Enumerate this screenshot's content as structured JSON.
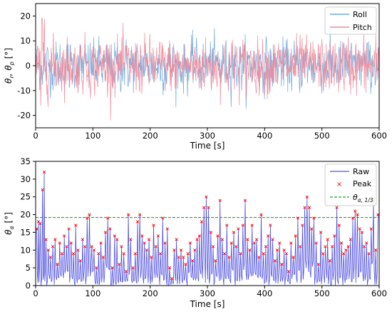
{
  "chart_data": [
    {
      "type": "line",
      "xlabel": "Time [s]",
      "ylabel": "θr, θp [°]",
      "ylabel_parts": {
        "main": "θ",
        "sub1": "r",
        "sep": ", θ",
        "sub2": "p",
        "unit": " [°]"
      },
      "xlim": [
        0,
        600
      ],
      "ylim": [
        -25,
        25
      ],
      "xticks": [
        0,
        100,
        200,
        300,
        400,
        500,
        600
      ],
      "yticks": [
        -20,
        -10,
        0,
        10,
        20
      ],
      "grid": false,
      "legend": "top-right",
      "series": [
        {
          "name": "Roll",
          "color": "#6fa8dc",
          "amplitude_sd": 5.5,
          "peak_max": 19,
          "peak_min": -19
        },
        {
          "name": "Pitch",
          "color": "#f08a9a",
          "amplitude_sd": 6.0,
          "peak_max": 19,
          "peak_min": -23
        }
      ]
    },
    {
      "type": "line",
      "xlabel": "Time [s]",
      "ylabel": "θα [°]",
      "ylabel_parts": {
        "main": "θ",
        "sub": "α",
        "unit": " [°]"
      },
      "xlim": [
        0,
        600
      ],
      "ylim": [
        0,
        35
      ],
      "xticks": [
        0,
        100,
        200,
        300,
        400,
        500,
        600
      ],
      "yticks": [
        0,
        5,
        10,
        15,
        20,
        25,
        30,
        35
      ],
      "grid": false,
      "legend": "top-right",
      "series": [
        {
          "name": "Raw",
          "color": "#5050e0"
        },
        {
          "name": "Peak",
          "color": "#ff0000",
          "marker": "x"
        }
      ],
      "threshold": {
        "name": "θα,1/3",
        "name_parts": {
          "main": "θ",
          "sub": "α, 1/3"
        },
        "value": 19.2,
        "color": "#2ca02c",
        "style": "dashed"
      },
      "peaks": [
        [
          2,
          16
        ],
        [
          5,
          18
        ],
        [
          8,
          17.5
        ],
        [
          12,
          27
        ],
        [
          15,
          32
        ],
        [
          18,
          13
        ],
        [
          22,
          10
        ],
        [
          26,
          8
        ],
        [
          30,
          11
        ],
        [
          34,
          13
        ],
        [
          38,
          6
        ],
        [
          42,
          12
        ],
        [
          46,
          9
        ],
        [
          50,
          14
        ],
        [
          54,
          11
        ],
        [
          58,
          16
        ],
        [
          62,
          12
        ],
        [
          66,
          9
        ],
        [
          70,
          17
        ],
        [
          74,
          10
        ],
        [
          78,
          7
        ],
        [
          82,
          13
        ],
        [
          86,
          11
        ],
        [
          90,
          19
        ],
        [
          94,
          20
        ],
        [
          98,
          11
        ],
        [
          102,
          10
        ],
        [
          106,
          5
        ],
        [
          110,
          9
        ],
        [
          114,
          12
        ],
        [
          118,
          8
        ],
        [
          122,
          15
        ],
        [
          126,
          19
        ],
        [
          130,
          16
        ],
        [
          134,
          5
        ],
        [
          138,
          14
        ],
        [
          142,
          13
        ],
        [
          146,
          6
        ],
        [
          150,
          11
        ],
        [
          154,
          9
        ],
        [
          158,
          4
        ],
        [
          162,
          20
        ],
        [
          166,
          13
        ],
        [
          170,
          5
        ],
        [
          174,
          9
        ],
        [
          178,
          18
        ],
        [
          182,
          20
        ],
        [
          186,
          14
        ],
        [
          190,
          12
        ],
        [
          194,
          10
        ],
        [
          198,
          13
        ],
        [
          202,
          8
        ],
        [
          206,
          17
        ],
        [
          210,
          11
        ],
        [
          214,
          14
        ],
        [
          218,
          9
        ],
        [
          222,
          19
        ],
        [
          226,
          12
        ],
        [
          230,
          16
        ],
        [
          234,
          5
        ],
        [
          238,
          2
        ],
        [
          242,
          10
        ],
        [
          246,
          13
        ],
        [
          250,
          8
        ],
        [
          254,
          10
        ],
        [
          258,
          8
        ],
        [
          262,
          6
        ],
        [
          266,
          9
        ],
        [
          270,
          12
        ],
        [
          274,
          7
        ],
        [
          278,
          10
        ],
        [
          282,
          13
        ],
        [
          286,
          14
        ],
        [
          290,
          18
        ],
        [
          294,
          22
        ],
        [
          298,
          25
        ],
        [
          302,
          22
        ],
        [
          306,
          15
        ],
        [
          310,
          11
        ],
        [
          314,
          7
        ],
        [
          318,
          14
        ],
        [
          322,
          24
        ],
        [
          326,
          13
        ],
        [
          330,
          9
        ],
        [
          334,
          17
        ],
        [
          338,
          8
        ],
        [
          342,
          12
        ],
        [
          346,
          15
        ],
        [
          350,
          11
        ],
        [
          354,
          16
        ],
        [
          358,
          9
        ],
        [
          362,
          17
        ],
        [
          366,
          24
        ],
        [
          370,
          13
        ],
        [
          374,
          10
        ],
        [
          378,
          17
        ],
        [
          382,
          12
        ],
        [
          386,
          13
        ],
        [
          390,
          8
        ],
        [
          394,
          20
        ],
        [
          398,
          9
        ],
        [
          402,
          11
        ],
        [
          406,
          14
        ],
        [
          410,
          17
        ],
        [
          414,
          13
        ],
        [
          418,
          7
        ],
        [
          422,
          10
        ],
        [
          426,
          12
        ],
        [
          430,
          6
        ],
        [
          434,
          10
        ],
        [
          438,
          9
        ],
        [
          442,
          4
        ],
        [
          446,
          12
        ],
        [
          450,
          8
        ],
        [
          454,
          14
        ],
        [
          458,
          19
        ],
        [
          462,
          11
        ],
        [
          466,
          17
        ],
        [
          470,
          22
        ],
        [
          474,
          25
        ],
        [
          478,
          22
        ],
        [
          482,
          16
        ],
        [
          486,
          19
        ],
        [
          490,
          12
        ],
        [
          494,
          6
        ],
        [
          498,
          15
        ],
        [
          502,
          9
        ],
        [
          506,
          11
        ],
        [
          510,
          13
        ],
        [
          514,
          7
        ],
        [
          518,
          11
        ],
        [
          522,
          14
        ],
        [
          526,
          22
        ],
        [
          530,
          17
        ],
        [
          534,
          12
        ],
        [
          538,
          9
        ],
        [
          542,
          10
        ],
        [
          546,
          11
        ],
        [
          550,
          13
        ],
        [
          554,
          19
        ],
        [
          558,
          21
        ],
        [
          562,
          20
        ],
        [
          566,
          16
        ],
        [
          570,
          15
        ],
        [
          574,
          11
        ],
        [
          578,
          12
        ],
        [
          582,
          9
        ],
        [
          586,
          16
        ],
        [
          590,
          24
        ],
        [
          594,
          10
        ],
        [
          598,
          20
        ]
      ]
    }
  ]
}
